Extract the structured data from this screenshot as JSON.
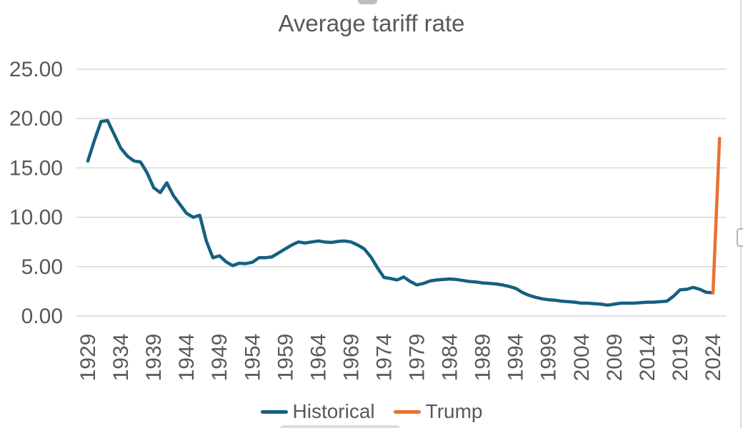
{
  "chart_data": {
    "type": "line",
    "title": "Average tariff rate",
    "xlabel": "",
    "ylabel": "",
    "ylim": [
      0,
      25
    ],
    "xlim": [
      1929,
      2025
    ],
    "grid": true,
    "legend_position": "bottom",
    "text_color": "#595959",
    "gridline_color": "#D9D9D9",
    "yticks": [
      {
        "value": 0,
        "label": "0.00"
      },
      {
        "value": 5,
        "label": "5.00"
      },
      {
        "value": 10,
        "label": "10.00"
      },
      {
        "value": 15,
        "label": "15.00"
      },
      {
        "value": 20,
        "label": "20.00"
      },
      {
        "value": 25,
        "label": "25.00"
      }
    ],
    "xticks": [
      {
        "value": 1929,
        "label": "1929"
      },
      {
        "value": 1934,
        "label": "1934"
      },
      {
        "value": 1939,
        "label": "1939"
      },
      {
        "value": 1944,
        "label": "1944"
      },
      {
        "value": 1949,
        "label": "1949"
      },
      {
        "value": 1954,
        "label": "1954"
      },
      {
        "value": 1959,
        "label": "1959"
      },
      {
        "value": 1964,
        "label": "1964"
      },
      {
        "value": 1969,
        "label": "1969"
      },
      {
        "value": 1974,
        "label": "1974"
      },
      {
        "value": 1979,
        "label": "1979"
      },
      {
        "value": 1984,
        "label": "1984"
      },
      {
        "value": 1989,
        "label": "1989"
      },
      {
        "value": 1994,
        "label": "1994"
      },
      {
        "value": 1999,
        "label": "1999"
      },
      {
        "value": 2004,
        "label": "2004"
      },
      {
        "value": 2009,
        "label": "2009"
      },
      {
        "value": 2014,
        "label": "2014"
      },
      {
        "value": 2019,
        "label": "2019"
      },
      {
        "value": 2024,
        "label": "2024"
      }
    ],
    "series": [
      {
        "name": "Historical",
        "color": "#156082",
        "x_start": 1929,
        "x_step": 1,
        "values": [
          15.7,
          17.8,
          19.7,
          19.8,
          18.4,
          17.0,
          16.2,
          15.7,
          15.6,
          14.5,
          13.0,
          12.5,
          13.5,
          12.2,
          11.3,
          10.4,
          10.0,
          10.2,
          7.6,
          5.9,
          6.1,
          5.5,
          5.1,
          5.35,
          5.3,
          5.45,
          5.9,
          5.9,
          6.0,
          6.4,
          6.8,
          7.2,
          7.5,
          7.4,
          7.5,
          7.6,
          7.5,
          7.45,
          7.55,
          7.6,
          7.5,
          7.2,
          6.8,
          6.0,
          4.9,
          3.9,
          3.8,
          3.65,
          3.95,
          3.5,
          3.15,
          3.3,
          3.55,
          3.65,
          3.7,
          3.75,
          3.7,
          3.6,
          3.5,
          3.45,
          3.35,
          3.3,
          3.25,
          3.15,
          3.0,
          2.8,
          2.4,
          2.1,
          1.9,
          1.75,
          1.65,
          1.6,
          1.5,
          1.45,
          1.4,
          1.3,
          1.3,
          1.25,
          1.2,
          1.1,
          1.2,
          1.3,
          1.3,
          1.3,
          1.35,
          1.4,
          1.4,
          1.45,
          1.5,
          2.0,
          2.65,
          2.7,
          2.9,
          2.7,
          2.4,
          2.35
        ]
      },
      {
        "name": "Trump",
        "color": "#E97132",
        "x_start": 2024,
        "x_step": 1,
        "values": [
          2.35,
          18.0
        ]
      }
    ]
  }
}
